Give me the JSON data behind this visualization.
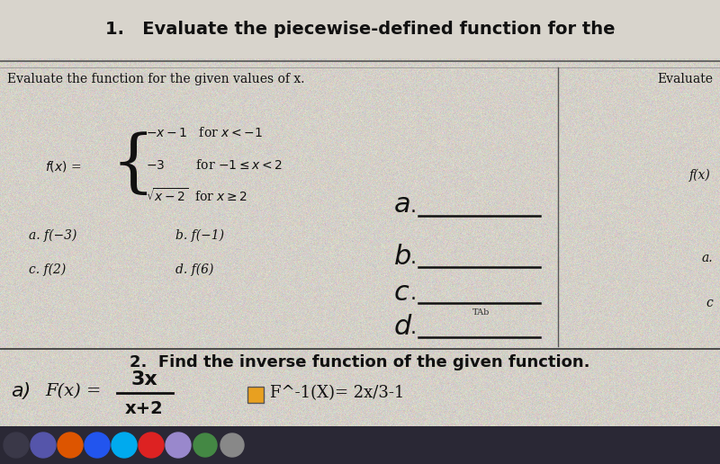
{
  "bg_color": "#c8c4bc",
  "paper_color": "#d4d0c8",
  "title_text": "1.   Evaluate the piecewise-defined function for the",
  "subtitle_text": "Evaluate the function for the given values of x.",
  "right_label": "Evaluate",
  "right_label2": "f(x)",
  "part_a_left": "a. f(−3)",
  "part_b_left": "b. f(−1)",
  "part_c_left": "c. f(2)",
  "part_d_left": "d. f(6)",
  "tab_label": "TAb",
  "section2_title": "2.  Find the inverse function of the given function.",
  "title_fontsize": 13,
  "body_fontsize": 10,
  "hand_fontsize": 20,
  "section2_fontsize": 13
}
